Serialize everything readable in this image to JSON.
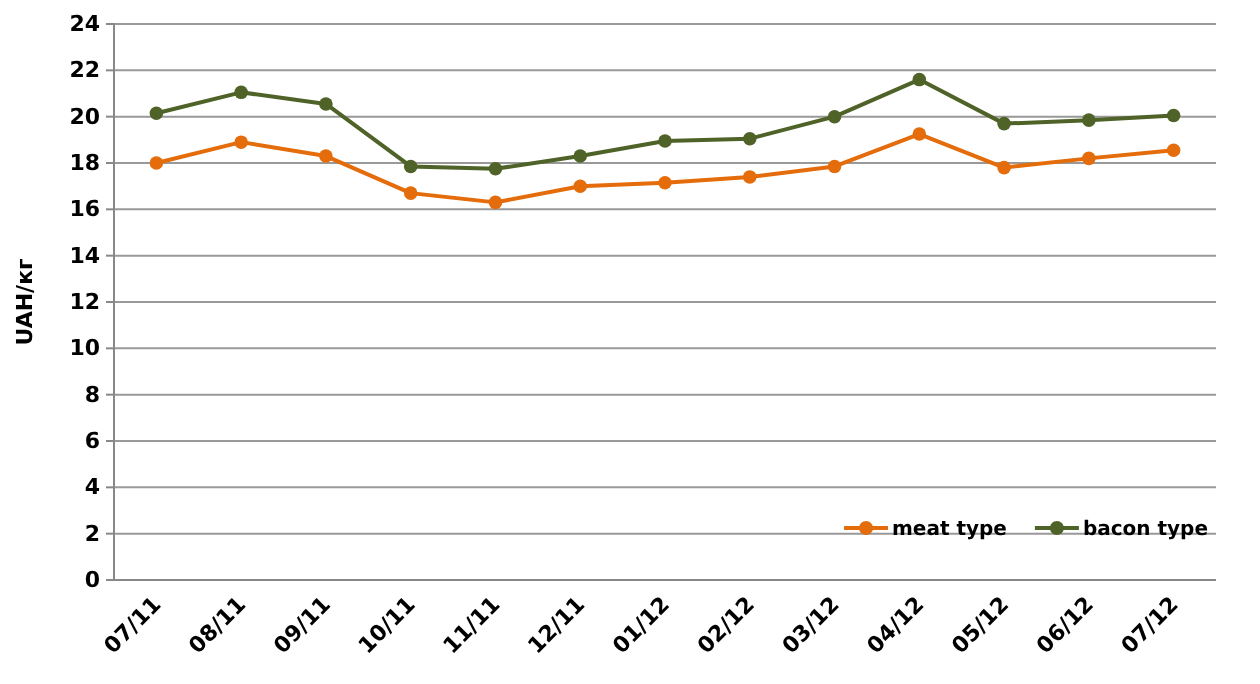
{
  "chart_data": {
    "type": "line",
    "ylabel": "UAH/кг",
    "categories": [
      "07/11",
      "08/11",
      "09/11",
      "10/11",
      "11/11",
      "12/11",
      "01/12",
      "02/12",
      "03/12",
      "04/12",
      "05/12",
      "06/12",
      "07/12"
    ],
    "series": [
      {
        "name": "meat type",
        "color": "#e46c0a",
        "values": [
          18.0,
          18.9,
          18.3,
          16.7,
          16.3,
          17.0,
          17.15,
          17.4,
          17.85,
          19.25,
          17.8,
          18.2,
          18.55
        ]
      },
      {
        "name": "bacon type",
        "color": "#4f6228",
        "values": [
          20.15,
          21.05,
          20.55,
          17.85,
          17.75,
          18.3,
          18.95,
          19.05,
          20.0,
          21.6,
          19.7,
          19.85,
          20.05
        ]
      }
    ],
    "ylim": [
      0,
      24
    ],
    "yticks": [
      0,
      2,
      4,
      6,
      8,
      10,
      12,
      14,
      16,
      18,
      20,
      22,
      24
    ],
    "grid": "y",
    "legend": "bottom right",
    "marker": "circle",
    "line_style": "solid"
  }
}
